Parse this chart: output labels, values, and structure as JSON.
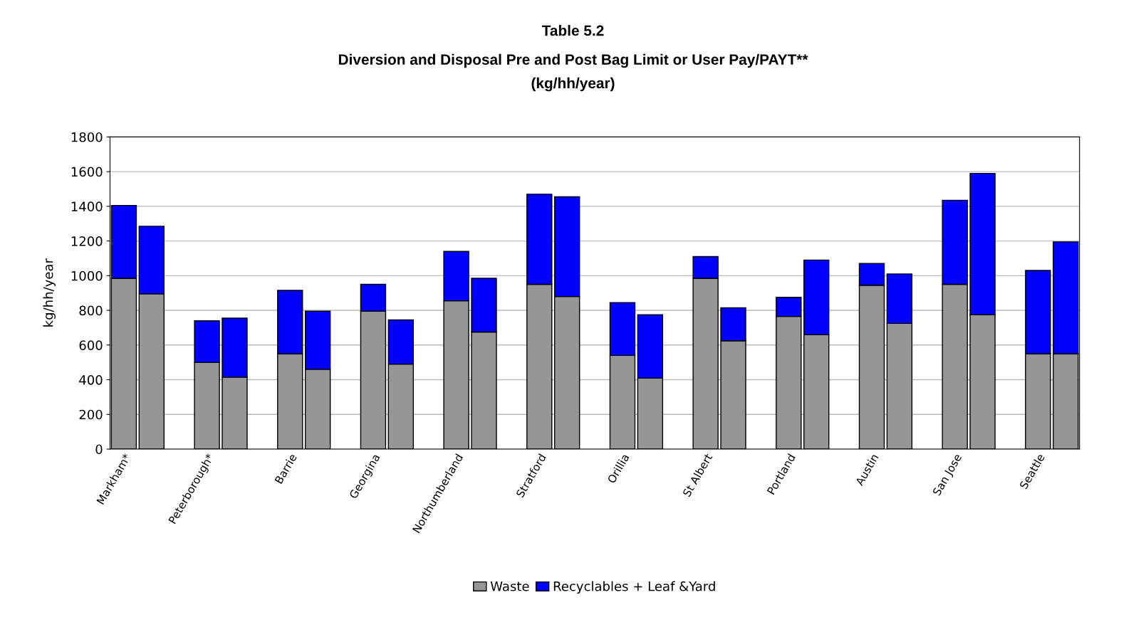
{
  "chart_data": {
    "type": "bar",
    "title": "Table 5.2",
    "subtitle": "Diversion and Disposal Pre and Post Bag Limit or User Pay/PAYT**\n(kg/hh/year)",
    "ylabel": "kg/hh/year",
    "categories": [
      "Markham*",
      null,
      null,
      "Peterborough*",
      null,
      null,
      "Barrie",
      null,
      null,
      "Georgina",
      null,
      null,
      "Northumberland",
      null,
      null,
      "Stratford",
      null,
      null,
      "Orillia",
      null,
      null,
      "St Albert",
      null,
      null,
      "Portland",
      null,
      null,
      "Austin",
      null,
      null,
      "San Jose",
      null,
      null,
      "Seattle",
      null
    ],
    "stacked": true,
    "series": [
      {
        "name": "Waste",
        "color": "#969696",
        "values": [
          985,
          895,
          null,
          500,
          415,
          null,
          550,
          460,
          null,
          795,
          490,
          null,
          855,
          675,
          null,
          950,
          880,
          null,
          540,
          410,
          null,
          985,
          625,
          null,
          765,
          660,
          null,
          945,
          725,
          null,
          950,
          775,
          null,
          550,
          550
        ]
      },
      {
        "name": "Recyclables + Leaf &Yard",
        "color": "#0000ff",
        "values": [
          420,
          390,
          null,
          240,
          340,
          null,
          365,
          335,
          null,
          155,
          255,
          null,
          285,
          310,
          null,
          520,
          575,
          null,
          305,
          365,
          null,
          125,
          190,
          null,
          110,
          430,
          null,
          125,
          285,
          null,
          485,
          815,
          null,
          480,
          645
        ]
      }
    ],
    "ylim": [
      0,
      1800
    ],
    "yticks": [
      0,
      200,
      400,
      600,
      800,
      1000,
      1200,
      1400,
      1600,
      1800
    ],
    "grid": "y",
    "legend": "bottom"
  }
}
